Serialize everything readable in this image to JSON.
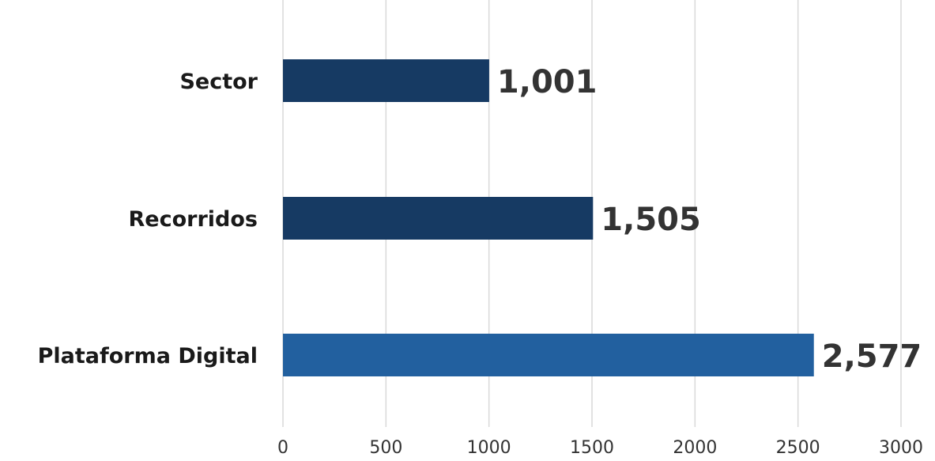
{
  "chart_data": {
    "type": "bar",
    "orientation": "horizontal",
    "categories": [
      "Sector",
      "Recorridos",
      "Plataforma Digital"
    ],
    "values": [
      1001,
      1505,
      2577
    ],
    "value_labels": [
      "1,001",
      "1,505",
      "2,577"
    ],
    "bar_colors": [
      "#163a63",
      "#163a63",
      "#22609f"
    ],
    "xlim": [
      0,
      3000
    ],
    "x_ticks": [
      0,
      500,
      1000,
      1500,
      2000,
      2500,
      3000
    ],
    "x_tick_labels": [
      "0",
      "500",
      "1000",
      "1500",
      "2000",
      "2500",
      "3000"
    ],
    "grid": "vertical",
    "grid_color": "#d9d9d9",
    "legend": "none",
    "title": "",
    "xlabel": "",
    "ylabel": ""
  }
}
